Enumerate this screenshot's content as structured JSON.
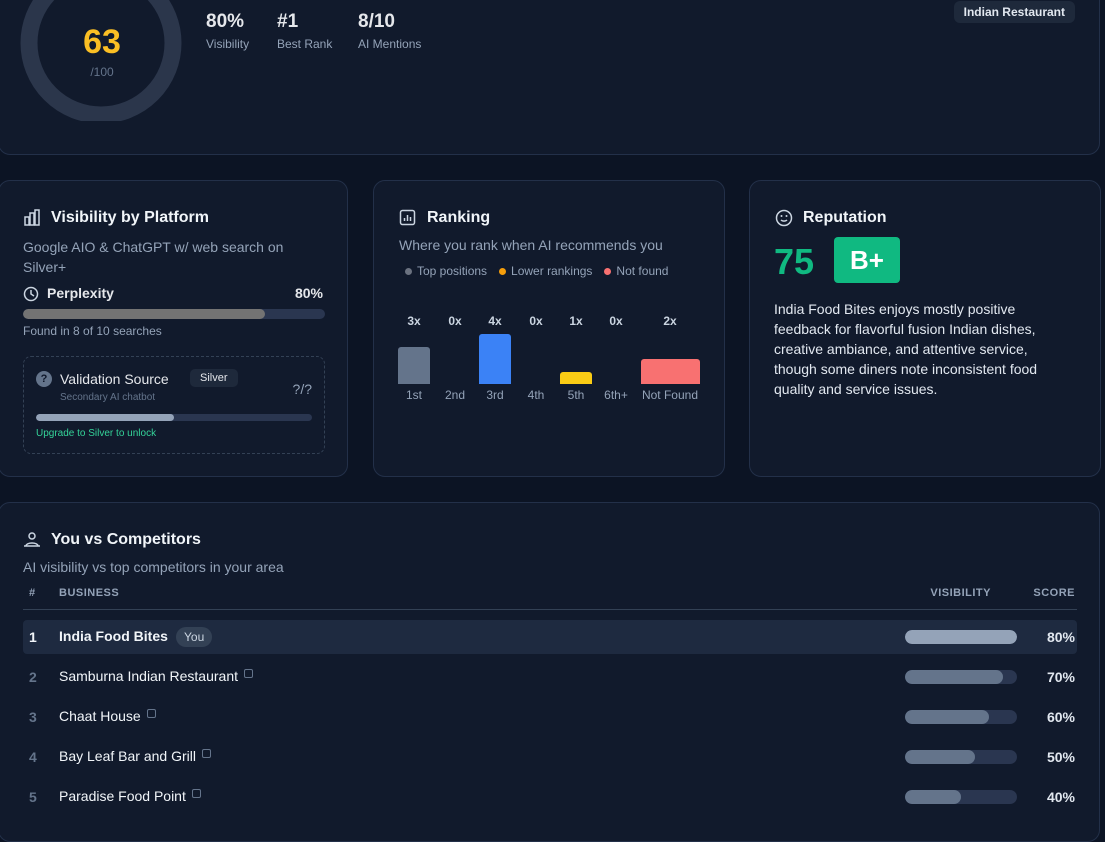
{
  "header": {
    "score": 63,
    "score_max": "/100",
    "stats": [
      {
        "value": "80%",
        "label": "Visibility"
      },
      {
        "value": "#1",
        "label": "Best Rank"
      },
      {
        "value": "8/10",
        "label": "AI Mentions"
      }
    ],
    "tag": "Indian Restaurant"
  },
  "platform": {
    "title": "Visibility by Platform",
    "subtitle": "Google AIO & ChatGPT w/ web search on Silver+",
    "name": "Perplexity",
    "percent": {
      "value": 80,
      "label": "80%"
    },
    "found": "Found in 8 of 10 searches",
    "validation": {
      "title": "Validation Source",
      "badge": "Silver",
      "subtitle": "Secondary AI chatbot",
      "score": "?/?",
      "cta": "Upgrade to Silver to unlock"
    }
  },
  "ranking": {
    "title": "Ranking",
    "subtitle": "Where you rank when AI recommends you",
    "legend": [
      {
        "name": "Top positions",
        "color": "#6b7280"
      },
      {
        "name": "Lower rankings",
        "color": "#f59e0b"
      },
      {
        "name": "Not found",
        "color": "#f87171"
      }
    ],
    "categories": [
      "1st",
      "2nd",
      "3rd",
      "4th",
      "5th",
      "6th+",
      "Not Found"
    ],
    "values": [
      3,
      0,
      4,
      0,
      1,
      0,
      2
    ],
    "value_labels": [
      "3x",
      "0x",
      "4x",
      "0x",
      "1x",
      "0x",
      "2x"
    ],
    "colors": [
      "#64748b",
      "#64748b",
      "#3b82f6",
      "#facc15",
      "#facc15",
      "#facc15",
      "#f87171"
    ]
  },
  "reputation": {
    "title": "Reputation",
    "score": 75,
    "grade": "B+",
    "summary": "India Food Bites enjoys mostly positive feedback for flavorful fusion Indian dishes, creative ambiance, and attentive service, though some diners note inconsistent food quality and service issues."
  },
  "competitors": {
    "title": "You vs Competitors",
    "subtitle": "AI visibility vs top competitors in your area",
    "columns": [
      "#",
      "BUSINESS",
      "VISIBILITY",
      "SCORE"
    ],
    "rows": [
      {
        "rank": 1,
        "name": "India Food Bites",
        "badge": "You",
        "visibility": {
          "value": 80,
          "label": "80%"
        }
      },
      {
        "rank": 2,
        "name": "Samburna Indian Restaurant",
        "visibility": {
          "value": 70,
          "label": "70%"
        }
      },
      {
        "rank": 3,
        "name": "Chaat House",
        "visibility": {
          "value": 60,
          "label": "60%"
        }
      },
      {
        "rank": 4,
        "name": "Bay Leaf Bar and Grill",
        "visibility": {
          "value": 50,
          "label": "50%"
        }
      },
      {
        "rank": 5,
        "name": "Paradise Food Point",
        "visibility": {
          "value": 40,
          "label": "40%"
        }
      }
    ]
  }
}
